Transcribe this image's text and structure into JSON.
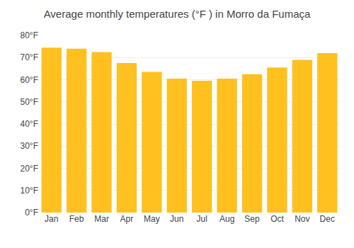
{
  "chart_data": {
    "type": "bar",
    "title": "Average monthly temperatures (°F ) in Morro da Fumaça",
    "categories": [
      "Jan",
      "Feb",
      "Mar",
      "Apr",
      "May",
      "Jun",
      "Jul",
      "Aug",
      "Sep",
      "Oct",
      "Nov",
      "Dec"
    ],
    "values": [
      74.5,
      74.0,
      72.5,
      67.5,
      63.5,
      60.5,
      59.5,
      60.5,
      62.5,
      65.5,
      69.0,
      72.0
    ],
    "color": "#FFC020",
    "ylim": [
      0,
      80
    ],
    "yticks": [
      {
        "value": 0,
        "label": "0°F"
      },
      {
        "value": 10,
        "label": "10°F"
      },
      {
        "value": 20,
        "label": "20°F"
      },
      {
        "value": 30,
        "label": "30°F"
      },
      {
        "value": 40,
        "label": "40°F"
      },
      {
        "value": 50,
        "label": "50°F"
      },
      {
        "value": 60,
        "label": "60°F"
      },
      {
        "value": 70,
        "label": "70°F"
      },
      {
        "value": 80,
        "label": "80°F"
      }
    ],
    "grid": true
  }
}
